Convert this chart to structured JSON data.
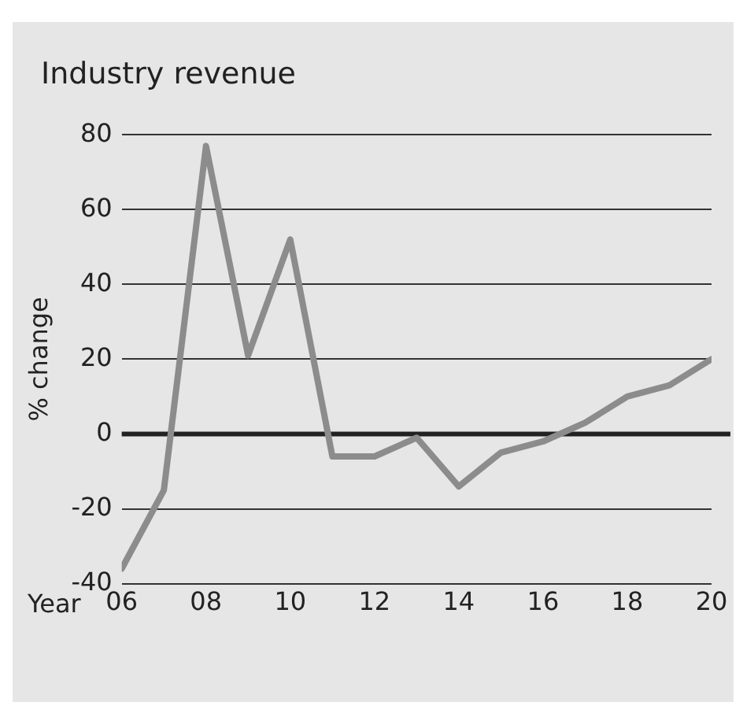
{
  "chart_data": {
    "type": "line",
    "title": "Industry revenue",
    "xlabel": "Year",
    "ylabel": "% change",
    "x": [
      2006,
      2007,
      2008,
      2009,
      2010,
      2011,
      2012,
      2013,
      2014,
      2015,
      2016,
      2017,
      2018,
      2019,
      2020
    ],
    "series": [
      {
        "color": "#8c8c8c",
        "values": [
          -36,
          -15,
          77,
          21,
          52,
          -6,
          -6,
          -1,
          -14,
          -5,
          -2,
          3,
          10,
          13,
          20
        ]
      }
    ],
    "xlim": [
      2006,
      2020
    ],
    "xticks": [
      {
        "value": 2006,
        "label": "06"
      },
      {
        "value": 2008,
        "label": "08"
      },
      {
        "value": 2010,
        "label": "10"
      },
      {
        "value": 2012,
        "label": "12"
      },
      {
        "value": 2014,
        "label": "14"
      },
      {
        "value": 2016,
        "label": "16"
      },
      {
        "value": 2018,
        "label": "18"
      },
      {
        "value": 2020,
        "label": "20"
      }
    ],
    "ylim": [
      -40,
      80
    ],
    "yticks": [
      -40,
      -20,
      0,
      20,
      40,
      60,
      80
    ],
    "ref_lines": [
      {
        "axis": "y",
        "value": 0,
        "color": "#222222"
      }
    ],
    "grid": "y",
    "legend": false,
    "marker": "none",
    "line_style": "solid"
  }
}
